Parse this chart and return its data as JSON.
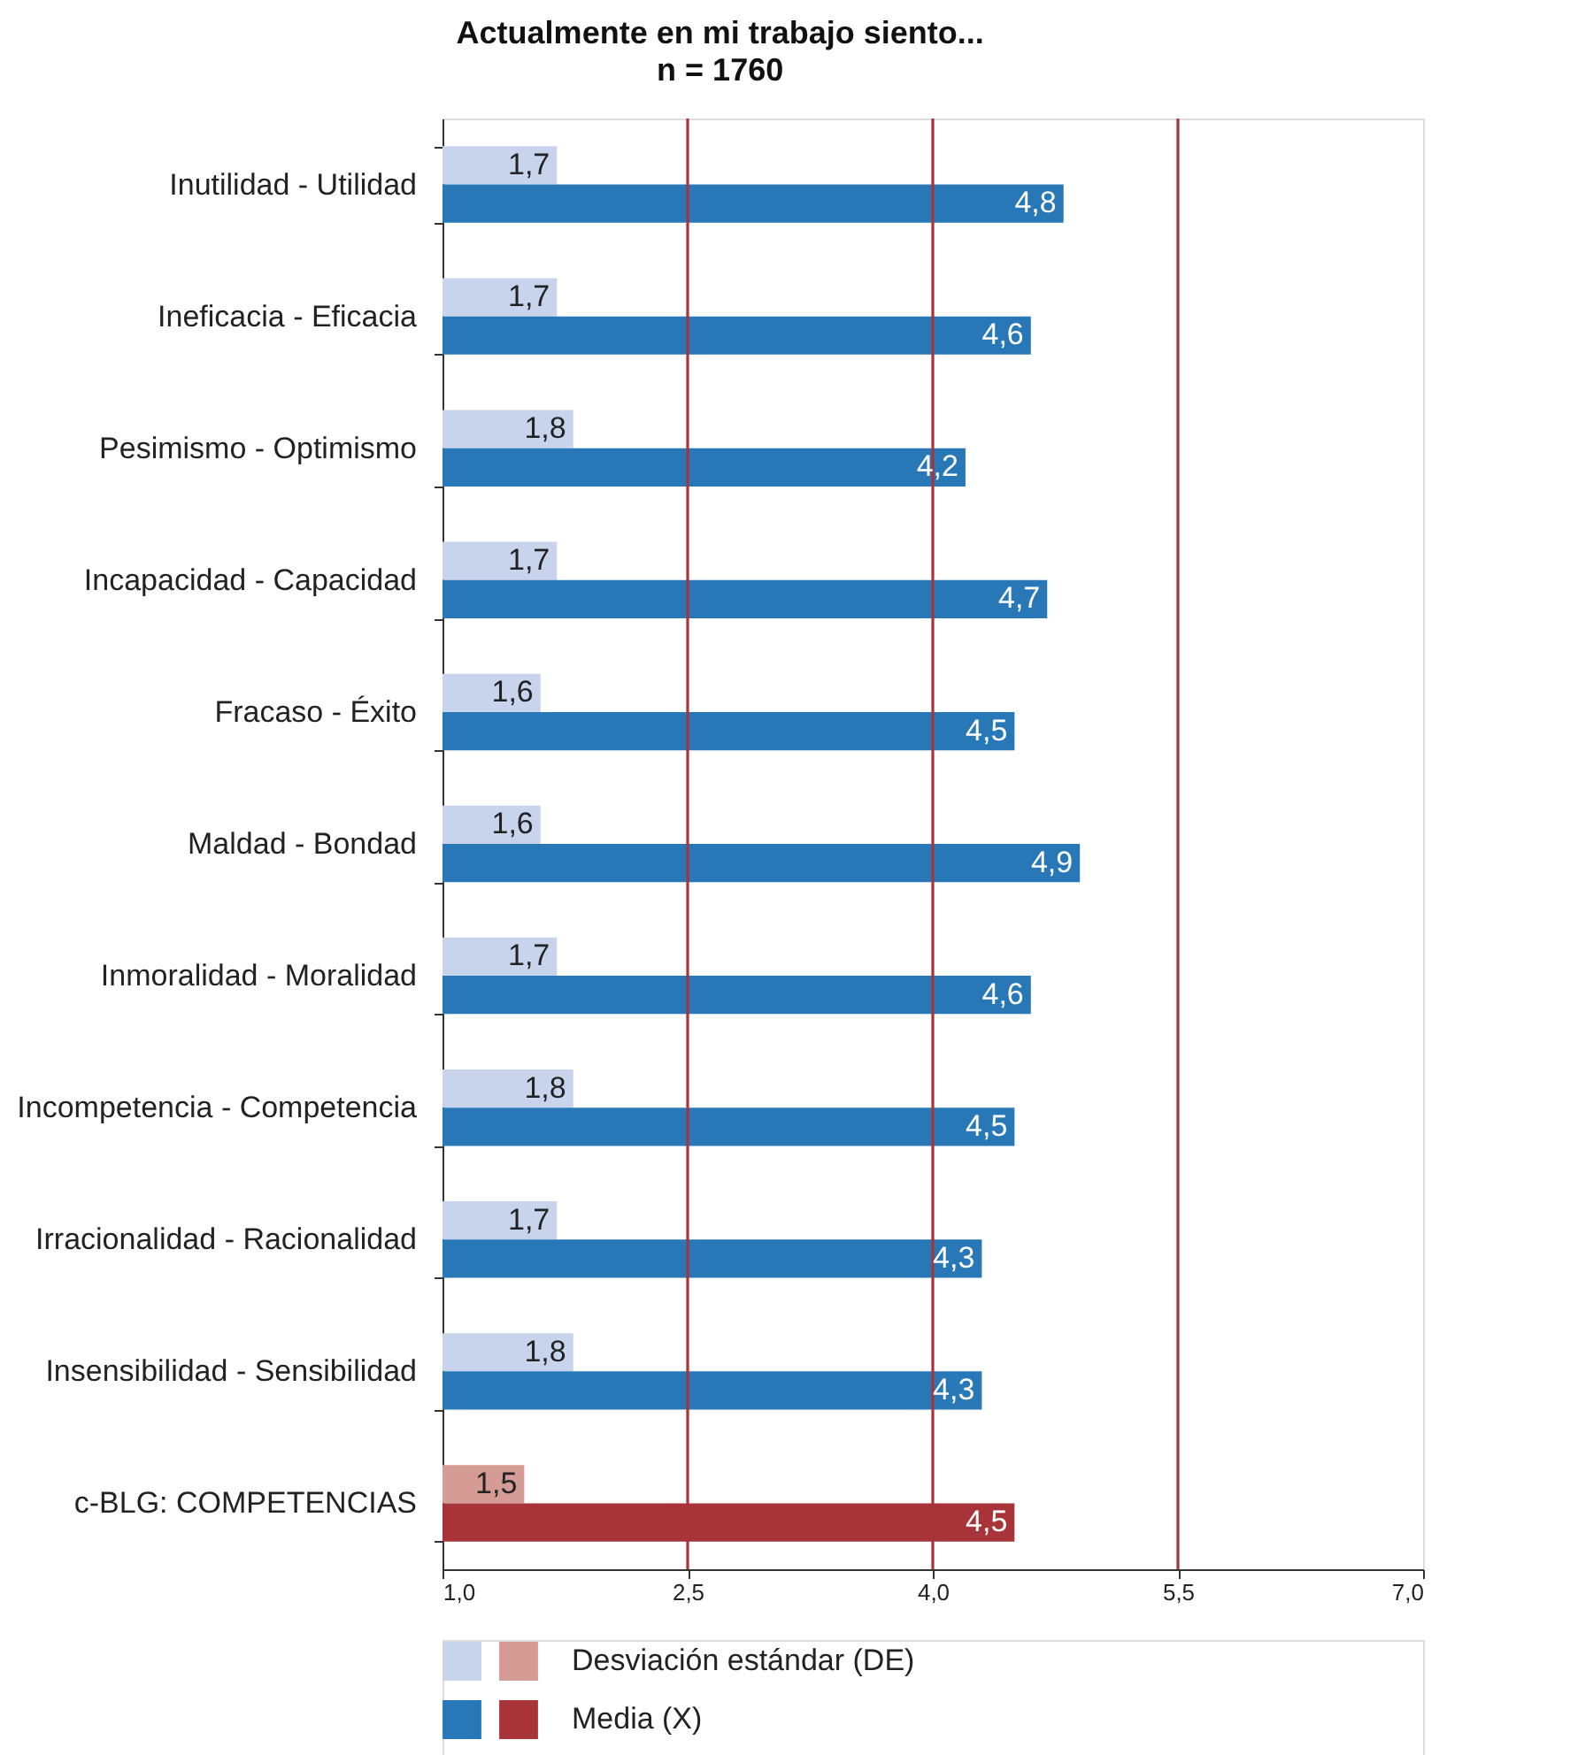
{
  "chart_data": {
    "type": "bar",
    "orientation": "horizontal",
    "title": "Actualmente en mi trabajo siento...",
    "subtitle": "n = 1760",
    "categories": [
      "Inutilidad - Utilidad",
      "Ineficacia - Eficacia",
      "Pesimismo - Optimismo",
      "Incapacidad - Capacidad",
      "Fracaso - Éxito",
      "Maldad - Bondad",
      "Inmoralidad - Moralidad",
      "Incompetencia - Competencia",
      "Irracionalidad - Racionalidad",
      "Insensibilidad - Sensibilidad",
      "c-BLG: COMPETENCIAS"
    ],
    "series": [
      {
        "name": "Desviación estándar (DE)",
        "colors": [
          "#c8d3ec",
          "#c8d3ec",
          "#c8d3ec",
          "#c8d3ec",
          "#c8d3ec",
          "#c8d3ec",
          "#c8d3ec",
          "#c8d3ec",
          "#c8d3ec",
          "#c8d3ec",
          "#d59b95"
        ],
        "values": [
          1.7,
          1.7,
          1.8,
          1.7,
          1.6,
          1.6,
          1.7,
          1.8,
          1.7,
          1.8,
          1.5
        ],
        "value_labels": [
          "1,7",
          "1,7",
          "1,8",
          "1,7",
          "1,6",
          "1,6",
          "1,7",
          "1,8",
          "1,7",
          "1,8",
          "1,5"
        ]
      },
      {
        "name": "Media (X)",
        "colors": [
          "#2878b8",
          "#2878b8",
          "#2878b8",
          "#2878b8",
          "#2878b8",
          "#2878b8",
          "#2878b8",
          "#2878b8",
          "#2878b8",
          "#2878b8",
          "#a8343a"
        ],
        "values": [
          4.8,
          4.6,
          4.2,
          4.7,
          4.5,
          4.9,
          4.6,
          4.5,
          4.3,
          4.3,
          4.5
        ],
        "value_labels": [
          "4,8",
          "4,6",
          "4,2",
          "4,7",
          "4,5",
          "4,9",
          "4,6",
          "4,5",
          "4,3",
          "4,3",
          "4,5"
        ]
      }
    ],
    "xlim": [
      1.0,
      7.0
    ],
    "xticks": [
      {
        "value": 1.0,
        "label": "1,0"
      },
      {
        "value": 2.5,
        "label": "2,5"
      },
      {
        "value": 4.0,
        "label": "4,0"
      },
      {
        "value": 5.5,
        "label": "5,5"
      },
      {
        "value": 7.0,
        "label": "7,0"
      }
    ],
    "ref_lines": [
      {
        "axis": "x",
        "value": 2.5,
        "color": "#a8343a"
      },
      {
        "axis": "x",
        "value": 4.0,
        "color": "#a8343a"
      },
      {
        "axis": "x",
        "value": 5.5,
        "color": "#a8343a"
      }
    ],
    "grid": false,
    "legend": "bottom"
  }
}
